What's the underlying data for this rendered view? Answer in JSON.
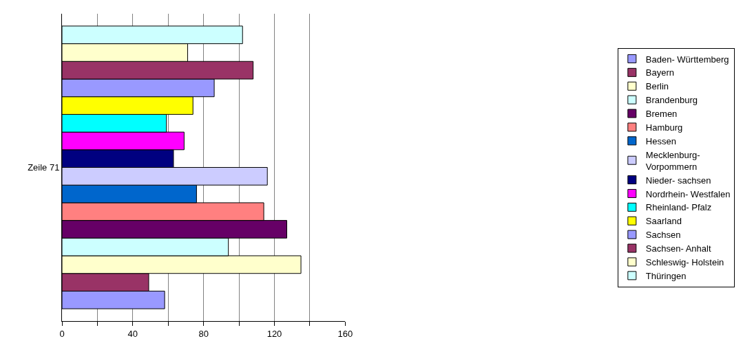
{
  "chart_data": {
    "type": "bar",
    "orientation": "horizontal",
    "categories": [
      "Zeile 71"
    ],
    "series": [
      {
        "name": "Baden- Württemberg",
        "color": "#9999ff",
        "values": [
          58
        ]
      },
      {
        "name": "Bayern",
        "color": "#993366",
        "values": [
          49
        ]
      },
      {
        "name": "Berlin",
        "color": "#ffffcc",
        "values": [
          135
        ]
      },
      {
        "name": "Brandenburg",
        "color": "#ccffff",
        "values": [
          94
        ]
      },
      {
        "name": "Bremen",
        "color": "#660066",
        "values": [
          127
        ]
      },
      {
        "name": "Hamburg",
        "color": "#ff8080",
        "values": [
          114
        ]
      },
      {
        "name": "Hessen",
        "color": "#0066cc",
        "values": [
          76
        ]
      },
      {
        "name": "Mecklenburg-Vorpommern",
        "color": "#ccccff",
        "values": [
          116
        ]
      },
      {
        "name": "Nieder- sachsen",
        "color": "#000080",
        "values": [
          63
        ]
      },
      {
        "name": "Nordrhein- Westfalen",
        "color": "#ff00ff",
        "values": [
          69
        ]
      },
      {
        "name": "Rheinland- Pfalz",
        "color": "#00ffff",
        "values": [
          59
        ]
      },
      {
        "name": "Saarland",
        "color": "#ffff00",
        "values": [
          74
        ]
      },
      {
        "name": "Sachsen",
        "color": "#9999ff",
        "values": [
          86
        ]
      },
      {
        "name": "Sachsen- Anhalt",
        "color": "#993366",
        "values": [
          108
        ]
      },
      {
        "name": "Schleswig- Holstein",
        "color": "#ffffcc",
        "values": [
          71
        ]
      },
      {
        "name": "Thüringen",
        "color": "#ccffff",
        "values": [
          102
        ]
      }
    ],
    "xlim": [
      0,
      160
    ],
    "xticks": [
      0,
      {
        "value": 20,
        "label": null
      },
      40,
      {
        "value": 60,
        "label": null
      },
      80,
      {
        "value": 100,
        "label": null
      },
      120,
      {
        "value": 140,
        "label": null
      },
      160
    ],
    "grid": "x",
    "legend": "right"
  }
}
